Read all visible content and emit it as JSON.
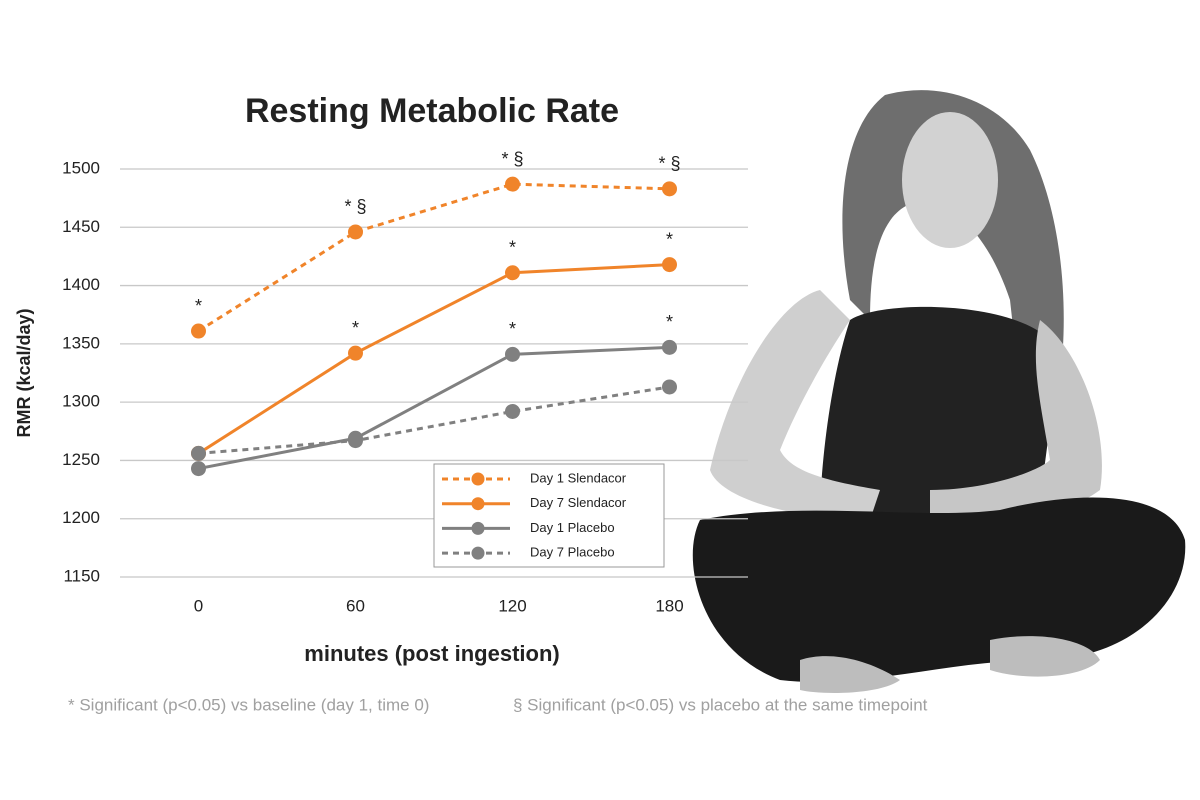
{
  "chart_data": {
    "type": "line",
    "title": "Resting Metabolic Rate",
    "x_label": "minutes (post ingestion)",
    "y_label": "RMR (kcal/day)",
    "categories": [
      "0",
      "60",
      "120",
      "180"
    ],
    "ylim": [
      1150,
      1500
    ],
    "yticks": [
      1150,
      1200,
      1250,
      1300,
      1350,
      1400,
      1450,
      1500
    ],
    "grid": true,
    "legend": "lower right",
    "series": [
      {
        "name": "Day 1 Slendacor",
        "color": "#f0842a",
        "dashed": true,
        "values": [
          1361,
          1446,
          1487,
          1483
        ],
        "annotations": [
          "*",
          "* §",
          "* §",
          "* §"
        ]
      },
      {
        "name": "Day 7 Slendacor",
        "color": "#f0842a",
        "dashed": false,
        "values": [
          1256,
          1342,
          1411,
          1418
        ],
        "annotations": [
          null,
          "*",
          "*",
          "*"
        ]
      },
      {
        "name": "Day 1 Placebo",
        "color": "#808080",
        "dashed": false,
        "values": [
          1243,
          1269,
          1341,
          1347
        ],
        "annotations": [
          null,
          null,
          "*",
          "*"
        ]
      },
      {
        "name": "Day 7 Placebo",
        "color": "#808080",
        "dashed": true,
        "values": [
          1256,
          1267,
          1292,
          1313
        ]
      }
    ],
    "footnotes": [
      "* Significant (p<0.05) vs baseline (day 1, time 0)",
      "§ Significant (p<0.05) vs placebo at the same timepoint"
    ]
  }
}
